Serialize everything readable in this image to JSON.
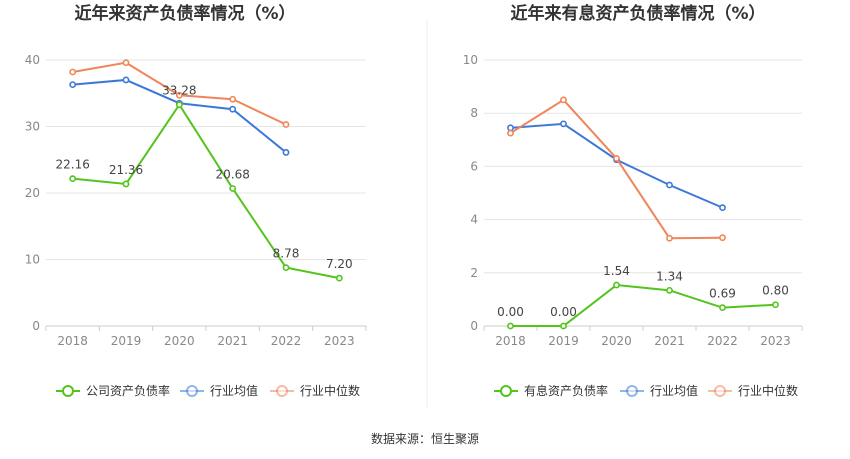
{
  "chart_data": [
    {
      "type": "line",
      "title": "近年来资产负债率情况（%）",
      "categories": [
        "2018",
        "2019",
        "2020",
        "2021",
        "2022",
        "2023"
      ],
      "ylim": [
        0,
        40
      ],
      "yticks": [
        0,
        10,
        20,
        30,
        40
      ],
      "grid": true,
      "legend_position": "bottom",
      "series": [
        {
          "name": "公司资产负债率",
          "color": "#52c41a",
          "values": [
            22.16,
            21.36,
            33.28,
            20.68,
            8.78,
            7.2
          ],
          "labels": [
            "22.16",
            "21.36",
            "33.28",
            "20.68",
            "8.78",
            "7.20"
          ]
        },
        {
          "name": "行业均值",
          "color": "#3c78d8",
          "values": [
            36.3,
            37.0,
            33.5,
            32.6,
            26.1,
            null
          ]
        },
        {
          "name": "行业中位数",
          "color": "#f0855a",
          "values": [
            38.2,
            39.6,
            34.7,
            34.1,
            30.3,
            null
          ]
        }
      ]
    },
    {
      "type": "line",
      "title": "近年来有息资产负债率情况（%）",
      "categories": [
        "2018",
        "2019",
        "2020",
        "2021",
        "2022",
        "2023"
      ],
      "ylim": [
        0,
        10
      ],
      "yticks": [
        0,
        2,
        4,
        6,
        8,
        10
      ],
      "grid": true,
      "legend_position": "bottom",
      "series": [
        {
          "name": "有息资产负债率",
          "color": "#52c41a",
          "values": [
            0.0,
            0.0,
            1.54,
            1.34,
            0.69,
            0.8
          ],
          "labels": [
            "0.00",
            "0.00",
            "1.54",
            "1.34",
            "0.69",
            "0.80"
          ]
        },
        {
          "name": "行业均值",
          "color": "#3c78d8",
          "values": [
            7.45,
            7.6,
            6.25,
            5.3,
            4.45,
            null
          ]
        },
        {
          "name": "行业中位数",
          "color": "#f0855a",
          "values": [
            7.25,
            8.5,
            6.3,
            3.3,
            3.32,
            null
          ]
        }
      ]
    }
  ],
  "footer": {
    "source": "数据来源：恒生聚源"
  },
  "colors": {
    "grid": "#e6e6e6",
    "axis": "#cccccc",
    "divider": "#e8e8e8"
  }
}
